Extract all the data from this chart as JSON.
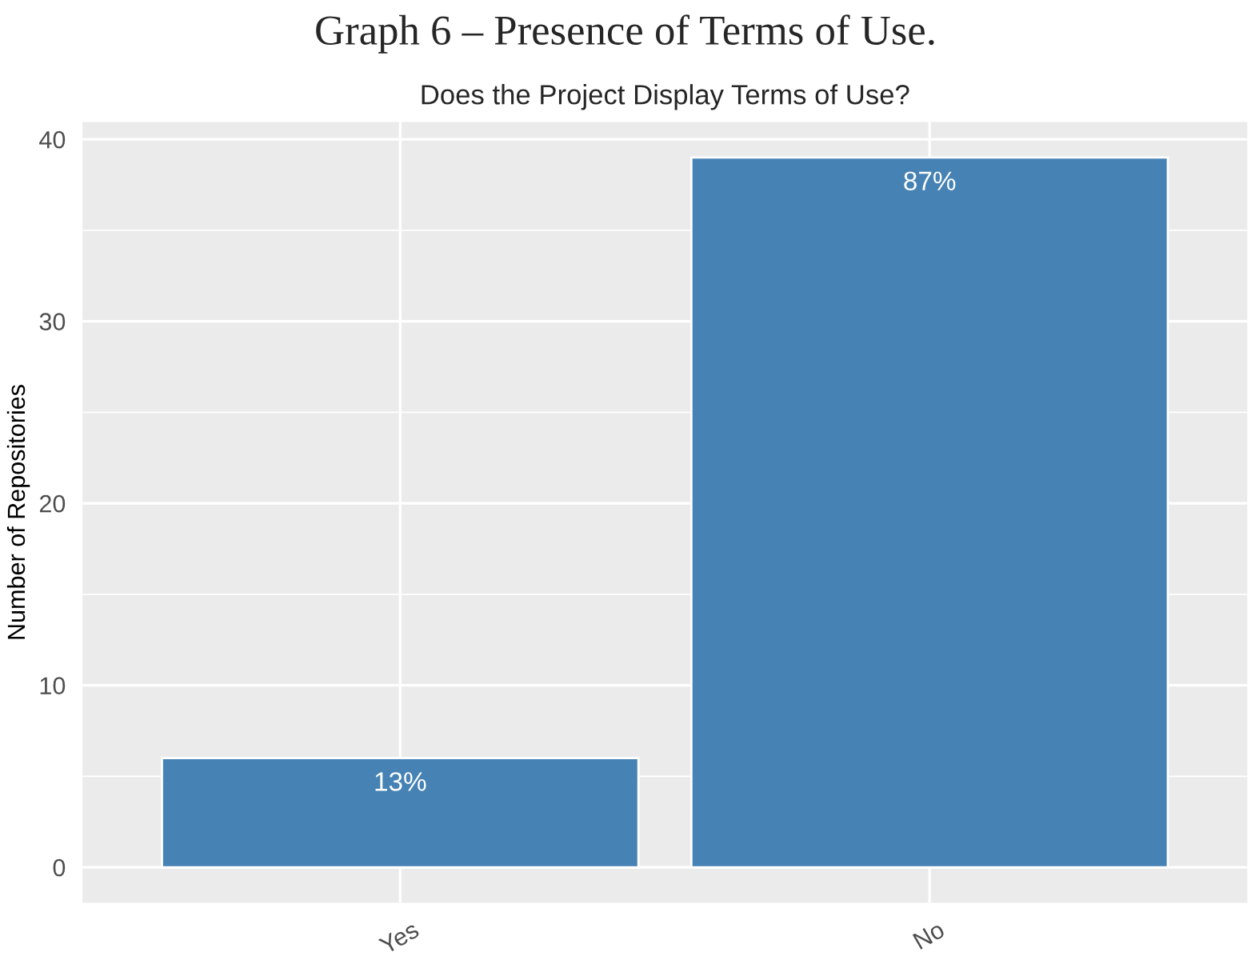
{
  "chart_data": {
    "type": "bar",
    "title": "Graph 6 – Presence of Terms of Use.",
    "subtitle": "Does the Project Display Terms of Use?",
    "ylabel": "Number of Repositories",
    "categories": [
      "Yes",
      "No"
    ],
    "values": [
      6,
      39
    ],
    "annotations": [
      {
        "text": "13%",
        "x": "Yes",
        "y": 6
      },
      {
        "text": "87%",
        "x": "No",
        "y": 39
      }
    ],
    "color": "#4682b4",
    "ylim": [
      -1.95,
      40.95
    ],
    "yticks": [
      0,
      10,
      20,
      30,
      40
    ],
    "grid": true
  }
}
